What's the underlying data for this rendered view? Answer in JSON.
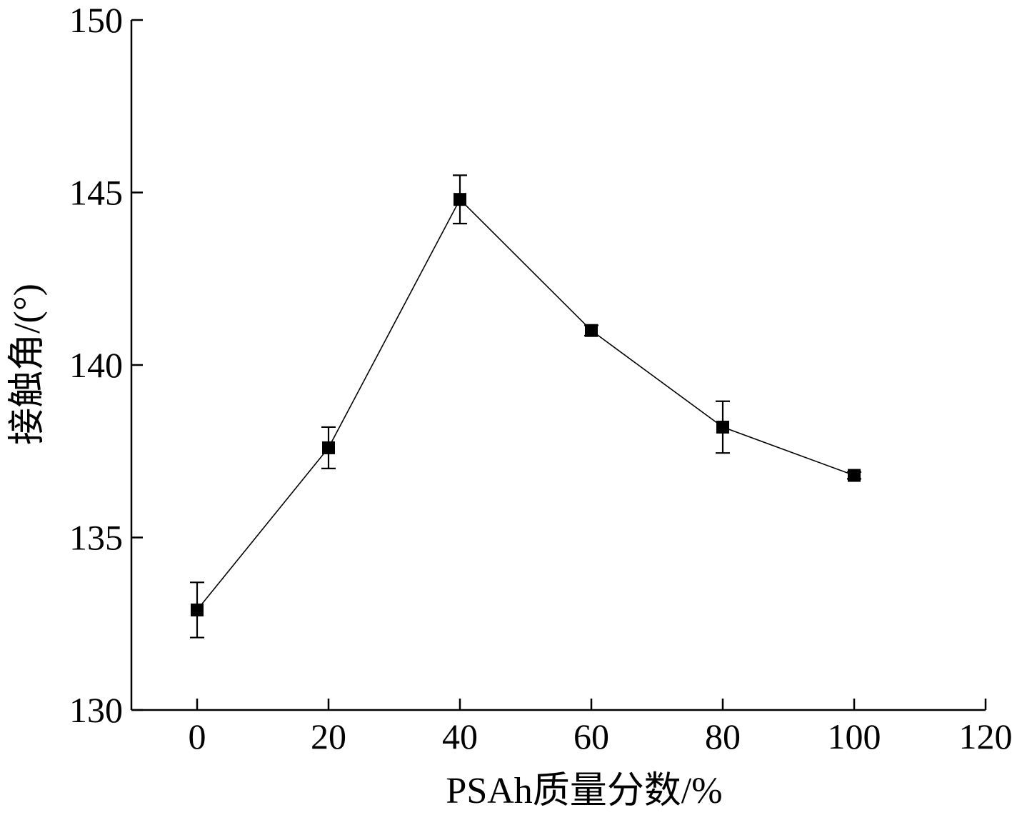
{
  "chart_data": {
    "type": "scatter",
    "title": "",
    "xlabel": "PSAh质量分数/%",
    "ylabel": "接触角/(°)",
    "xlim": [
      -10,
      120
    ],
    "ylim": [
      130,
      150
    ],
    "x_ticks": [
      0,
      20,
      40,
      60,
      80,
      100,
      120
    ],
    "y_ticks": [
      130,
      135,
      140,
      145,
      150
    ],
    "grid": false,
    "legend": "none",
    "marker": "square",
    "line": true,
    "series": [
      {
        "x": [
          0,
          20,
          40,
          60,
          80,
          100
        ],
        "y": [
          132.9,
          137.6,
          144.8,
          141.0,
          138.2,
          136.8
        ],
        "error": [
          0.8,
          0.6,
          0.7,
          0.15,
          0.75,
          0.1
        ]
      }
    ]
  }
}
